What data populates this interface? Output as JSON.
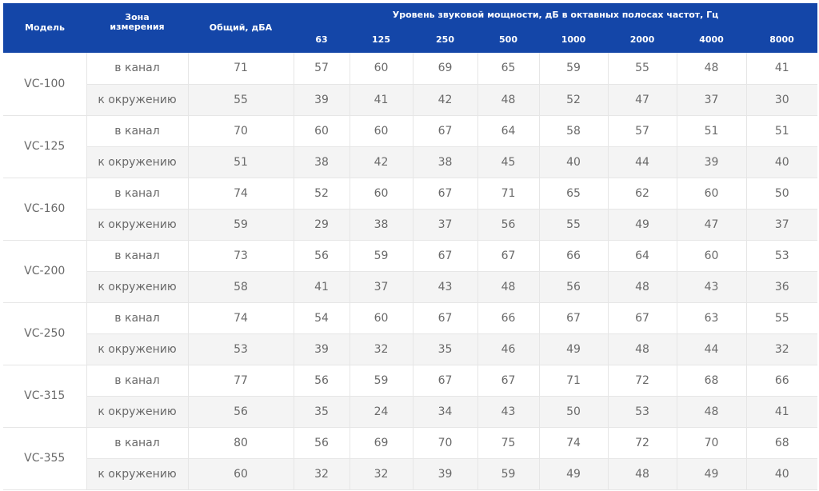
{
  "header": {
    "model": "Модель",
    "zone": "Зона измерения",
    "total": "Общий, дБА",
    "octave_title": "Уровень звуковой мощности, дБ в октавных полосах частот, Гц",
    "frequencies": [
      "63",
      "125",
      "250",
      "500",
      "1000",
      "2000",
      "4000",
      "8000"
    ]
  },
  "rows": [
    {
      "model": "VC-100",
      "lines": [
        {
          "zone": "в канал",
          "total": "71",
          "bands": [
            "57",
            "60",
            "69",
            "65",
            "59",
            "55",
            "48",
            "41"
          ]
        },
        {
          "zone": "к окружению",
          "total": "55",
          "bands": [
            "39",
            "41",
            "42",
            "48",
            "52",
            "47",
            "37",
            "30"
          ]
        }
      ]
    },
    {
      "model": "VC-125",
      "lines": [
        {
          "zone": "в канал",
          "total": "70",
          "bands": [
            "60",
            "60",
            "67",
            "64",
            "58",
            "57",
            "51",
            "51"
          ]
        },
        {
          "zone": "к окружению",
          "total": "51",
          "bands": [
            "38",
            "42",
            "38",
            "45",
            "40",
            "44",
            "39",
            "40"
          ]
        }
      ]
    },
    {
      "model": "VC-160",
      "lines": [
        {
          "zone": "в канал",
          "total": "74",
          "bands": [
            "52",
            "60",
            "67",
            "71",
            "65",
            "62",
            "60",
            "50"
          ]
        },
        {
          "zone": "к окружению",
          "total": "59",
          "bands": [
            "29",
            "38",
            "37",
            "56",
            "55",
            "49",
            "47",
            "37"
          ]
        }
      ]
    },
    {
      "model": "VC-200",
      "lines": [
        {
          "zone": "в канал",
          "total": "73",
          "bands": [
            "56",
            "59",
            "67",
            "67",
            "66",
            "64",
            "60",
            "53"
          ]
        },
        {
          "zone": "к окружению",
          "total": "58",
          "bands": [
            "41",
            "37",
            "43",
            "48",
            "56",
            "48",
            "43",
            "36"
          ]
        }
      ]
    },
    {
      "model": "VC-250",
      "lines": [
        {
          "zone": "в канал",
          "total": "74",
          "bands": [
            "54",
            "60",
            "67",
            "66",
            "67",
            "67",
            "63",
            "55"
          ]
        },
        {
          "zone": "к окружению",
          "total": "53",
          "bands": [
            "39",
            "32",
            "35",
            "46",
            "49",
            "48",
            "44",
            "32"
          ]
        }
      ]
    },
    {
      "model": "VC-315",
      "lines": [
        {
          "zone": "в канал",
          "total": "77",
          "bands": [
            "56",
            "59",
            "67",
            "67",
            "71",
            "72",
            "68",
            "66"
          ]
        },
        {
          "zone": "к окружению",
          "total": "56",
          "bands": [
            "35",
            "24",
            "34",
            "43",
            "50",
            "53",
            "48",
            "41"
          ]
        }
      ]
    },
    {
      "model": "VC-355",
      "lines": [
        {
          "zone": "в канал",
          "total": "80",
          "bands": [
            "56",
            "69",
            "70",
            "75",
            "74",
            "72",
            "70",
            "68"
          ]
        },
        {
          "zone": "к окружению",
          "total": "60",
          "bands": [
            "32",
            "32",
            "39",
            "59",
            "49",
            "48",
            "49",
            "40"
          ]
        }
      ]
    }
  ]
}
